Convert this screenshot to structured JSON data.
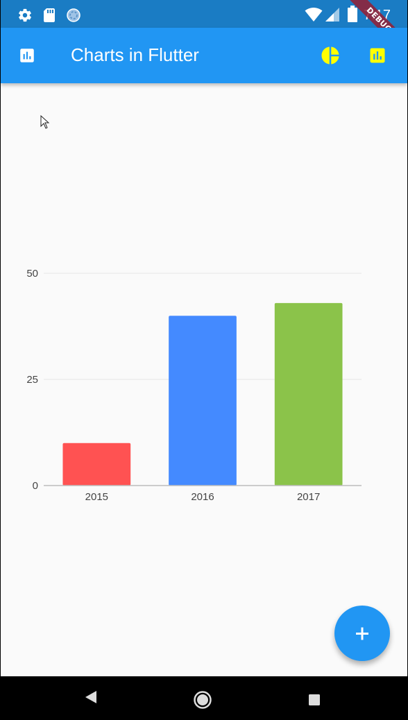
{
  "status_bar": {
    "time": "7:17",
    "icons": [
      "settings-icon",
      "sd-card-icon",
      "sync-circle-icon",
      "wifi-icon",
      "signal-icon",
      "battery-icon"
    ]
  },
  "debug_banner": "DEBUG",
  "app_bar": {
    "title": "Charts in Flutter",
    "leading_icon": "bar-chart-icon",
    "actions": [
      "pie-chart-icon",
      "bar-chart-icon"
    ],
    "action_color": "#ffff00",
    "background": "#2196f3"
  },
  "chart_data": {
    "type": "bar",
    "categories": [
      "2015",
      "2016",
      "2017"
    ],
    "values": [
      10,
      40,
      43
    ],
    "colors": [
      "#ff5252",
      "#448aff",
      "#8bc34a"
    ],
    "ylim": [
      0,
      50
    ],
    "yticks": [
      0,
      25,
      50
    ],
    "grid": true,
    "title": "",
    "xlabel": "",
    "ylabel": ""
  },
  "fab": {
    "icon": "add-icon",
    "label": "+"
  },
  "nav_bar": {
    "buttons": [
      "back-icon",
      "home-icon",
      "recents-icon"
    ]
  }
}
